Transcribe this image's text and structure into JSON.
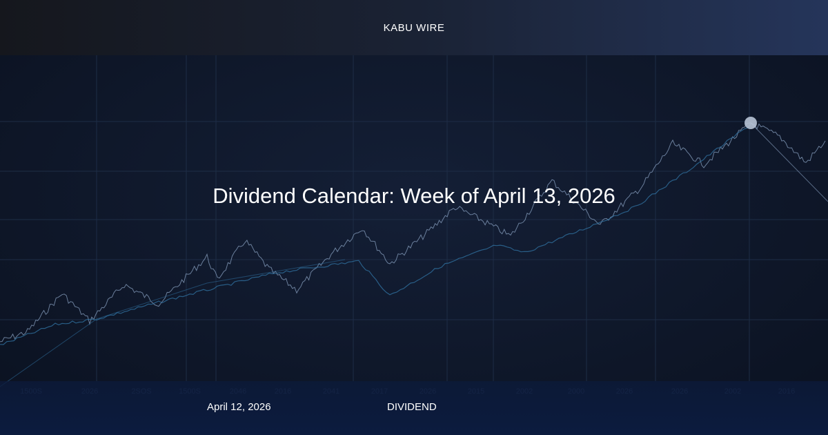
{
  "header": {
    "brand": "KABU WIRE"
  },
  "hero": {
    "title": "Dividend Calendar: Week of April 13, 2026",
    "x_tick_labels": [
      "1500S",
      "2026",
      "2SOS",
      "1500S",
      "2046",
      "2016",
      "2041",
      "2017",
      "2026",
      "2015",
      "2002",
      "2000",
      "2026",
      "2026",
      "2002",
      "2016"
    ]
  },
  "footer": {
    "date": "April 12, 2026",
    "category": "DIVIDEND"
  },
  "colors": {
    "background": "#0e1628",
    "grid": "#1e2d46",
    "line_primary": "#8aa2c2",
    "line_secondary": "#2f6f9e",
    "highlight": "#b8c4d6"
  }
}
